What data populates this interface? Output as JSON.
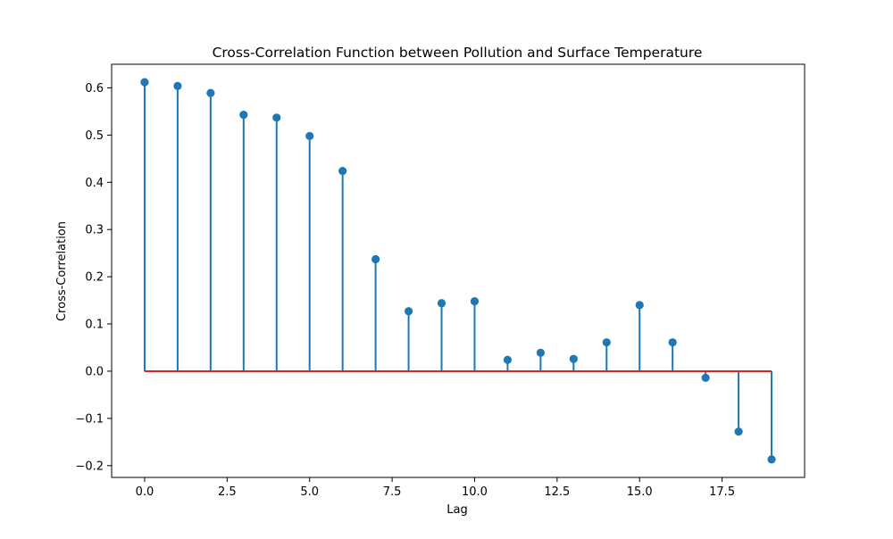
{
  "chart_data": {
    "type": "stem",
    "title": "Cross-Correlation Function between Pollution and Surface Temperature",
    "xlabel": "Lag",
    "ylabel": "Cross-Correlation",
    "x": [
      0,
      1,
      2,
      3,
      4,
      5,
      6,
      7,
      8,
      9,
      10,
      11,
      12,
      13,
      14,
      15,
      16,
      17,
      18,
      19
    ],
    "values": [
      0.612,
      0.604,
      0.589,
      0.543,
      0.537,
      0.498,
      0.424,
      0.237,
      0.127,
      0.144,
      0.148,
      0.024,
      0.039,
      0.026,
      0.061,
      0.14,
      0.061,
      -0.014,
      -0.128,
      -0.187
    ],
    "baseline": 0,
    "xlim": [
      -1,
      20
    ],
    "ylim": [
      -0.225,
      0.65
    ],
    "xticks": [
      0,
      2.5,
      5,
      7.5,
      10,
      12.5,
      15,
      17.5
    ],
    "xtick_labels": [
      "0.0",
      "2.5",
      "5.0",
      "7.5",
      "10.0",
      "12.5",
      "15.0",
      "17.5"
    ],
    "yticks": [
      -0.2,
      -0.1,
      0.0,
      0.1,
      0.2,
      0.3,
      0.4,
      0.5,
      0.6
    ],
    "ytick_labels": [
      "−0.2",
      "−0.1",
      "0.0",
      "0.1",
      "0.2",
      "0.3",
      "0.4",
      "0.5",
      "0.6"
    ],
    "grid": false,
    "legend": "none",
    "colors": {
      "stem": "#1f77b4",
      "marker": "#1f77b4",
      "baseline": "#d62728",
      "axis": "#000000"
    }
  }
}
